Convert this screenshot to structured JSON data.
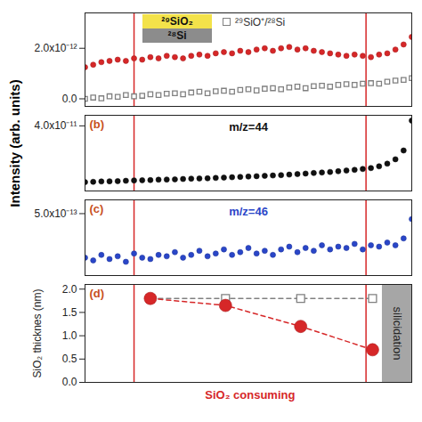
{
  "ylabel": "Intensity (arb. units)",
  "chart_data": [
    {
      "type": "scatter",
      "xlim": [
        0,
        100
      ],
      "tick_labels": "y",
      "vlines": [
        15,
        86
      ],
      "ylim": [
        -3e-13,
        3.4e-12
      ],
      "yticks": [
        {
          "value": 0,
          "label": "0.0"
        },
        {
          "value": 2e-12,
          "label": "2.0x10⁻¹²"
        }
      ],
      "inset": [
        "²⁹SiO₂",
        "²⁸Si"
      ],
      "x": [
        0,
        2.5,
        5,
        7.5,
        10,
        12.5,
        15,
        17.5,
        20,
        22.5,
        25,
        27.5,
        30,
        32.5,
        35,
        37.5,
        40,
        42.5,
        45,
        47.5,
        50,
        52.5,
        55,
        57.5,
        60,
        62.5,
        65,
        67.5,
        70,
        72.5,
        75,
        77.5,
        80,
        82.5,
        85,
        87.5,
        90,
        92.5,
        95,
        97.5,
        100
      ],
      "series": [
        {
          "color": "#d62728",
          "marker": "circle",
          "values": [
            1.25e-12,
            1.35e-12,
            1.45e-12,
            1.5e-12,
            1.55e-12,
            1.5e-12,
            1.6e-12,
            1.55e-12,
            1.65e-12,
            1.6e-12,
            1.7e-12,
            1.65e-12,
            1.6e-12,
            1.7e-12,
            1.75e-12,
            1.7e-12,
            1.8e-12,
            1.85e-12,
            1.8e-12,
            1.9e-12,
            1.85e-12,
            1.95e-12,
            2e-12,
            1.9e-12,
            2e-12,
            2.05e-12,
            1.95e-12,
            2e-12,
            1.9e-12,
            1.85e-12,
            1.8e-12,
            1.75e-12,
            1.7e-12,
            1.75e-12,
            1.7e-12,
            1.65e-12,
            1.75e-12,
            1.8e-12,
            1.95e-12,
            2.15e-12,
            2.45e-12
          ]
        },
        {
          "name": "²⁹SiO⁺/²⁸Si",
          "color": "#808080",
          "marker": "square",
          "values": [
            0.0,
            5e-14,
            2e-14,
            1e-13,
            8e-14,
            1.5e-13,
            1e-13,
            1.2e-13,
            1.8e-13,
            1.5e-13,
            2e-13,
            2.2e-13,
            1.8e-13,
            2.5e-13,
            2.8e-13,
            2.2e-13,
            3e-13,
            3.2e-13,
            2.8e-13,
            3.5e-13,
            3.8e-13,
            3.3e-13,
            4e-13,
            4.2e-13,
            3.8e-13,
            4.5e-13,
            4.8e-13,
            4.2e-13,
            5e-13,
            5.2e-13,
            4.8e-13,
            5.5e-13,
            5.8e-13,
            5.5e-13,
            6e-13,
            6.2e-13,
            6e-13,
            6.8e-13,
            7.2e-13,
            7.5e-13,
            8.2e-13
          ]
        }
      ]
    },
    {
      "type": "scatter",
      "title": "(b)",
      "annotations": [
        "m/z=44"
      ],
      "xlim": [
        0,
        100
      ],
      "tick_labels": "y",
      "vlines": [
        15,
        86
      ],
      "ylim": [
        3e-12,
        4.6e-11
      ],
      "yticks": [
        {
          "value": 4e-11,
          "label": "4.0x10⁻¹¹"
        }
      ],
      "x": [
        0,
        2.5,
        5,
        7.5,
        10,
        12.5,
        15,
        17.5,
        20,
        22.5,
        25,
        27.5,
        30,
        32.5,
        35,
        37.5,
        40,
        42.5,
        45,
        47.5,
        50,
        52.5,
        55,
        57.5,
        60,
        62.5,
        65,
        67.5,
        70,
        72.5,
        75,
        77.5,
        80,
        82.5,
        85,
        87.5,
        90,
        92.5,
        95,
        97.5,
        100
      ],
      "series": [
        {
          "color": "#111111",
          "marker": "circle",
          "values": [
            8e-12,
            8.2e-12,
            8.4e-12,
            8.5e-12,
            8.6e-12,
            8.8e-12,
            9e-12,
            9.1e-12,
            9.2e-12,
            9.4e-12,
            9.5e-12,
            9.6e-12,
            9.8e-12,
            1e-11,
            1.01e-11,
            1.02e-11,
            1.04e-11,
            1.06e-11,
            1.08e-11,
            1.1e-11,
            1.12e-11,
            1.14e-11,
            1.16e-11,
            1.18e-11,
            1.2e-11,
            1.23e-11,
            1.26e-11,
            1.29e-11,
            1.32e-11,
            1.35e-11,
            1.38e-11,
            1.42e-11,
            1.46e-11,
            1.5e-11,
            1.55e-11,
            1.6e-11,
            1.7e-11,
            1.85e-11,
            2.1e-11,
            2.6e-11,
            4.3e-11
          ]
        }
      ]
    },
    {
      "type": "scatter",
      "title": "(c)",
      "annotations": [
        "m/z=46"
      ],
      "xlim": [
        0,
        100
      ],
      "tick_labels": "y",
      "vlines": [
        15,
        86
      ],
      "ylim": [
        5e-14,
        6e-13
      ],
      "yticks": [
        {
          "value": 5e-13,
          "label": "5.0x10⁻¹³"
        }
      ],
      "x": [
        0,
        2.5,
        5,
        7.5,
        10,
        12.5,
        15,
        17.5,
        20,
        22.5,
        25,
        27.5,
        30,
        32.5,
        35,
        37.5,
        40,
        42.5,
        45,
        47.5,
        50,
        52.5,
        55,
        57.5,
        60,
        62.5,
        65,
        67.5,
        70,
        72.5,
        75,
        77.5,
        80,
        82.5,
        85,
        87.5,
        90,
        92.5,
        95,
        97.5,
        100
      ],
      "series": [
        {
          "color": "#2a46c8",
          "marker": "circle",
          "values": [
            1.8e-13,
            1.6e-13,
            2e-13,
            1.7e-13,
            1.9e-13,
            1.5e-13,
            2.1e-13,
            1.8e-13,
            1.7e-13,
            2e-13,
            1.9e-13,
            2.2e-13,
            1.8e-13,
            2e-13,
            2.3e-13,
            1.9e-13,
            2.1e-13,
            2.4e-13,
            2e-13,
            2.2e-13,
            2.5e-13,
            2.1e-13,
            2.3e-13,
            2e-13,
            2.4e-13,
            2.6e-13,
            2.2e-13,
            2.5e-13,
            2.3e-13,
            2.7e-13,
            2.4e-13,
            2.6e-13,
            2.5e-13,
            2.8e-13,
            2.4e-13,
            2.7e-13,
            2.6e-13,
            2.9e-13,
            2.7e-13,
            3.2e-13,
            4.6e-13
          ]
        }
      ]
    },
    {
      "type": "line",
      "title": "(d)",
      "ylabel": "SiO₂ thicknes (nm)",
      "annotations": [
        "SiO₂ consuming"
      ],
      "xlim": [
        0,
        100
      ],
      "tick_labels": "y",
      "vlines": [
        15,
        86
      ],
      "region": {
        "x": [
          91,
          100
        ],
        "label": "silicidation"
      },
      "ylim": [
        0,
        2.1
      ],
      "yticks": [
        {
          "value": 0,
          "label": "0.0"
        },
        {
          "value": 0.5,
          "label": "0.5"
        },
        {
          "value": 1,
          "label": "1.0"
        },
        {
          "value": 1.5,
          "label": "1.5"
        },
        {
          "value": 2,
          "label": "2.0"
        }
      ],
      "x": [
        20,
        43,
        66,
        88
      ],
      "series": [
        {
          "color": "#808080",
          "marker": "square",
          "line_style": "dashed",
          "values": [
            1.8,
            1.8,
            1.8,
            1.8
          ]
        },
        {
          "color": "#d62728",
          "marker": "circle",
          "line_style": "dashed",
          "values": [
            1.8,
            1.65,
            1.2,
            0.7
          ]
        }
      ]
    }
  ]
}
